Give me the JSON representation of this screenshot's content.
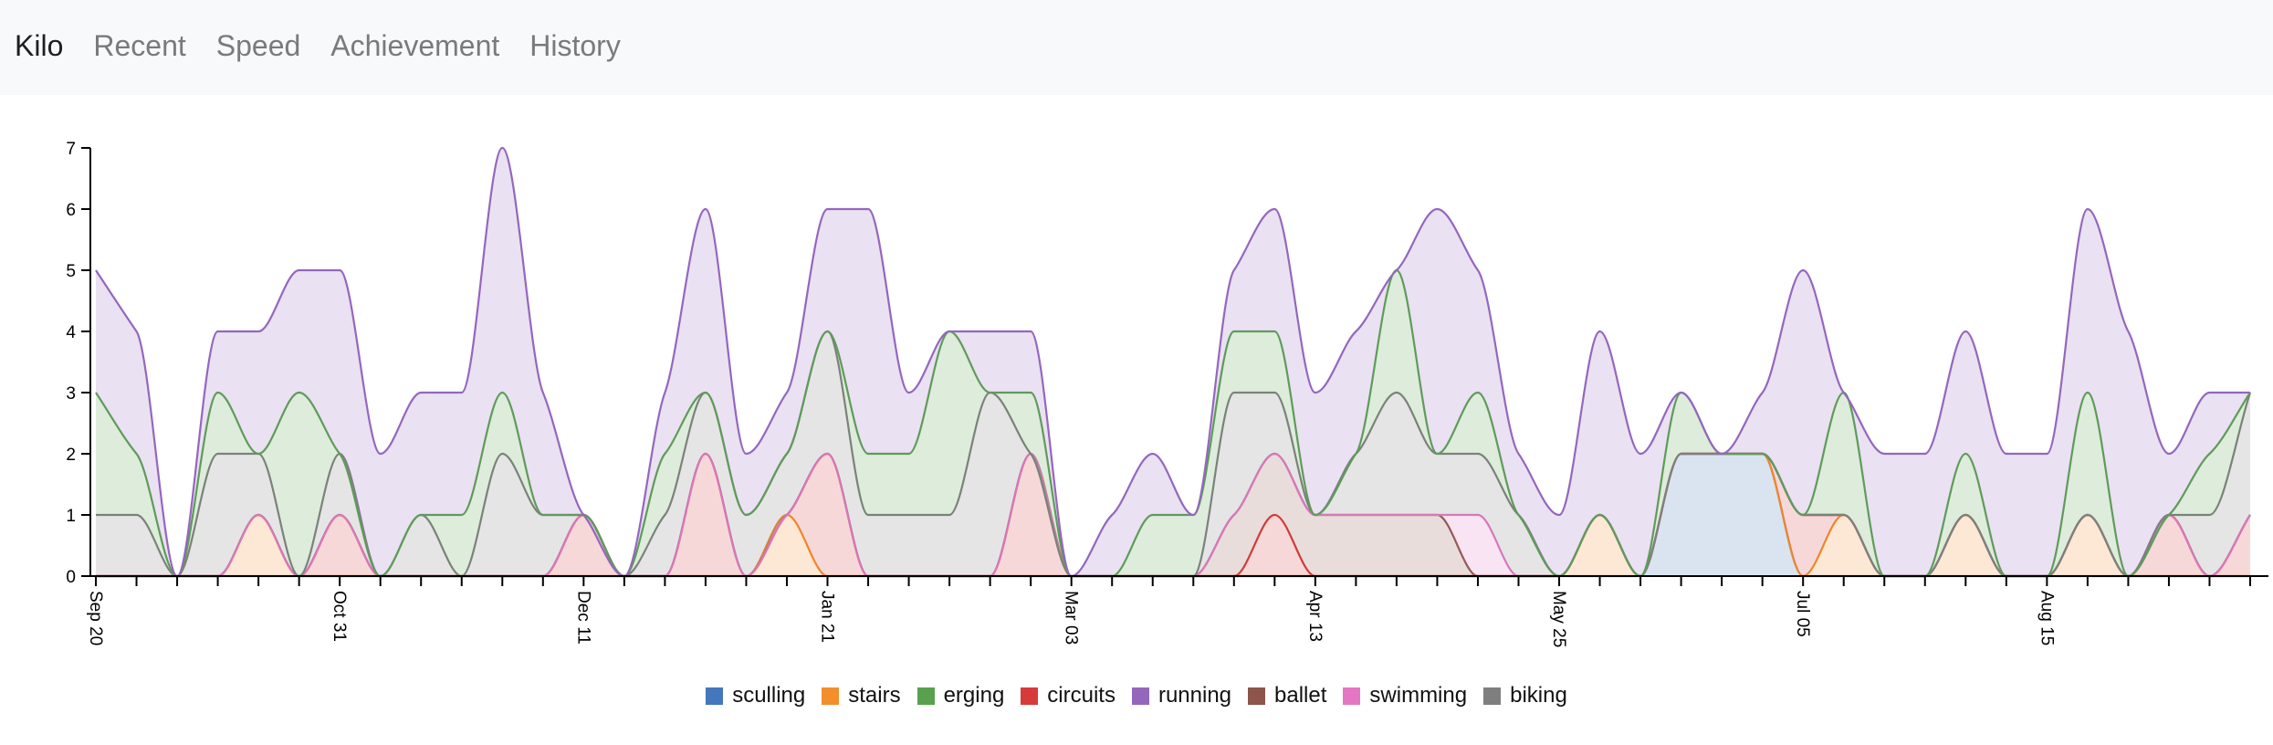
{
  "nav": {
    "brand": "Kilo",
    "links": [
      "Recent",
      "Speed",
      "Achievement",
      "History"
    ]
  },
  "chart_data": {
    "type": "area",
    "ylim": [
      0,
      7
    ],
    "y_ticks": [
      0,
      1,
      2,
      3,
      4,
      5,
      6,
      7
    ],
    "x_labels": [
      "Sep 20",
      "Oct 31",
      "Dec 11",
      "Jan 21",
      "Mar 03",
      "Apr 13",
      "May 25",
      "Jul 05",
      "Aug 15"
    ],
    "x": [
      "Sep 20",
      "Sep 27",
      "Oct 04",
      "Oct 11",
      "Oct 18",
      "Oct 25",
      "Oct 31",
      "Nov 07",
      "Nov 14",
      "Nov 21",
      "Nov 28",
      "Dec 04",
      "Dec 11",
      "Dec 18",
      "Dec 25",
      "Jan 01",
      "Jan 08",
      "Jan 14",
      "Jan 21",
      "Jan 28",
      "Feb 04",
      "Feb 11",
      "Feb 18",
      "Feb 24",
      "Mar 03",
      "Mar 10",
      "Mar 17",
      "Mar 24",
      "Mar 31",
      "Apr 07",
      "Apr 13",
      "Apr 20",
      "Apr 27",
      "May 04",
      "May 11",
      "May 18",
      "May 25",
      "Jun 01",
      "Jun 08",
      "Jun 15",
      "Jun 22",
      "Jun 28",
      "Jul 05",
      "Jul 12",
      "Jul 19",
      "Jul 26",
      "Aug 02",
      "Aug 09",
      "Aug 15",
      "Aug 22",
      "Aug 29",
      "Sep 05",
      "Sep 12",
      "Sep 19"
    ],
    "stack_order": [
      "sculling",
      "stairs",
      "circuits",
      "ballet",
      "swimming",
      "biking",
      "erging",
      "running"
    ],
    "series": [
      {
        "name": "sculling",
        "color": "#4477bb",
        "values": [
          0,
          0,
          0,
          0,
          0,
          0,
          0,
          0,
          0,
          0,
          0,
          0,
          0,
          0,
          0,
          0,
          0,
          0,
          0,
          0,
          0,
          0,
          0,
          0,
          0,
          0,
          0,
          0,
          0,
          0,
          0,
          0,
          0,
          0,
          0,
          0,
          0,
          0,
          0,
          2,
          2,
          2,
          0,
          0,
          0,
          0,
          0,
          0,
          0,
          0,
          0,
          0,
          0,
          0
        ]
      },
      {
        "name": "stairs",
        "color": "#f28e2b",
        "values": [
          0,
          0,
          0,
          0,
          1,
          0,
          0,
          0,
          0,
          0,
          0,
          0,
          0,
          0,
          0,
          0,
          0,
          1,
          0,
          0,
          0,
          0,
          0,
          0,
          0,
          0,
          0,
          0,
          0,
          0,
          0,
          0,
          0,
          0,
          0,
          0,
          0,
          1,
          0,
          0,
          0,
          0,
          0,
          1,
          0,
          0,
          1,
          0,
          0,
          1,
          0,
          0,
          0,
          0
        ]
      },
      {
        "name": "erging",
        "color": "#59a14f",
        "values": [
          2,
          1,
          0,
          1,
          0,
          3,
          0,
          0,
          0,
          1,
          1,
          0,
          0,
          0,
          1,
          0,
          0,
          0,
          0,
          1,
          1,
          3,
          0,
          1,
          0,
          0,
          1,
          1,
          1,
          1,
          0,
          0,
          2,
          0,
          1,
          0,
          0,
          0,
          0,
          1,
          0,
          0,
          0,
          2,
          0,
          0,
          1,
          0,
          0,
          2,
          0,
          0,
          1,
          0
        ]
      },
      {
        "name": "circuits",
        "color": "#d63a3a",
        "values": [
          0,
          0,
          0,
          0,
          0,
          0,
          1,
          0,
          0,
          0,
          0,
          0,
          1,
          0,
          0,
          2,
          0,
          0,
          2,
          0,
          0,
          0,
          0,
          2,
          0,
          0,
          0,
          0,
          0,
          1,
          0,
          0,
          0,
          0,
          0,
          0,
          0,
          0,
          0,
          0,
          0,
          0,
          1,
          0,
          0,
          0,
          0,
          0,
          0,
          0,
          0,
          1,
          0,
          1
        ]
      },
      {
        "name": "running",
        "color": "#9467bd",
        "values": [
          2,
          2,
          0,
          1,
          2,
          2,
          3,
          2,
          2,
          2,
          4,
          2,
          0,
          0,
          1,
          3,
          1,
          1,
          2,
          4,
          1,
          0,
          1,
          1,
          0,
          1,
          1,
          0,
          1,
          2,
          2,
          2,
          0,
          4,
          2,
          1,
          1,
          3,
          2,
          0,
          0,
          1,
          4,
          0,
          2,
          2,
          2,
          2,
          2,
          3,
          4,
          1,
          1,
          0
        ]
      },
      {
        "name": "ballet",
        "color": "#8c564b",
        "values": [
          0,
          0,
          0,
          0,
          0,
          0,
          0,
          0,
          0,
          0,
          0,
          0,
          0,
          0,
          0,
          0,
          0,
          0,
          0,
          0,
          0,
          0,
          0,
          0,
          0,
          0,
          0,
          0,
          1,
          1,
          1,
          1,
          1,
          1,
          0,
          0,
          0,
          0,
          0,
          0,
          0,
          0,
          0,
          0,
          0,
          0,
          0,
          0,
          0,
          0,
          0,
          0,
          0,
          0
        ]
      },
      {
        "name": "swimming",
        "color": "#e377c2",
        "values": [
          0,
          0,
          0,
          0,
          0,
          0,
          0,
          0,
          0,
          0,
          0,
          0,
          0,
          0,
          0,
          0,
          0,
          0,
          0,
          0,
          0,
          0,
          0,
          0,
          0,
          0,
          0,
          0,
          0,
          0,
          0,
          0,
          0,
          0,
          1,
          0,
          0,
          0,
          0,
          0,
          0,
          0,
          0,
          0,
          0,
          0,
          0,
          0,
          0,
          0,
          0,
          0,
          0,
          0
        ]
      },
      {
        "name": "biking",
        "color": "#7f7f7f",
        "values": [
          1,
          1,
          0,
          2,
          1,
          0,
          1,
          0,
          1,
          0,
          2,
          1,
          0,
          0,
          1,
          1,
          1,
          1,
          2,
          1,
          1,
          1,
          3,
          0,
          0,
          0,
          0,
          0,
          2,
          1,
          0,
          1,
          2,
          1,
          1,
          1,
          0,
          0,
          0,
          0,
          0,
          0,
          0,
          0,
          0,
          0,
          0,
          0,
          0,
          0,
          0,
          0,
          1,
          2
        ]
      }
    ]
  }
}
